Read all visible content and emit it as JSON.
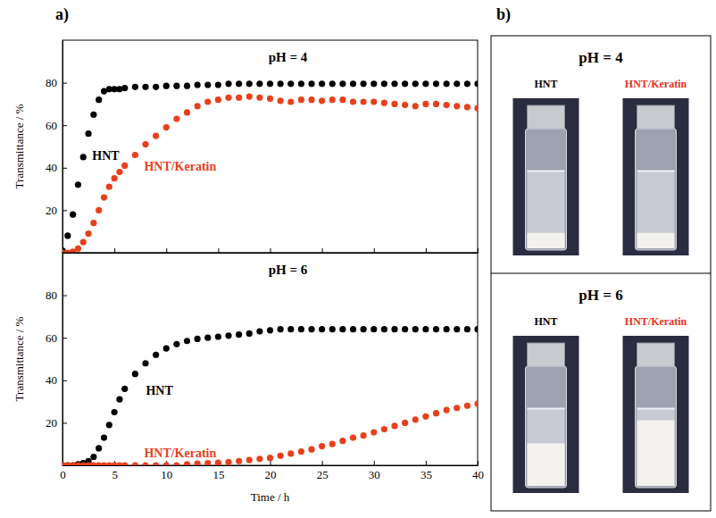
{
  "chart_data": [
    {
      "type": "scatter",
      "title": "pH = 4",
      "ylabel": "Transmittance / %",
      "x": [
        0,
        0.5,
        1,
        1.5,
        2,
        2.5,
        3,
        3.5,
        4,
        4.5,
        5,
        5.5,
        6,
        7,
        8,
        9,
        10,
        11,
        12,
        13,
        14,
        15,
        16,
        17,
        18,
        19,
        20,
        21,
        22,
        23,
        24,
        25,
        26,
        27,
        28,
        29,
        30,
        31,
        32,
        33,
        34,
        35,
        36,
        37,
        38,
        39,
        40
      ],
      "series": [
        {
          "name": "HNT",
          "color": "#000000",
          "marker": "circle",
          "values": [
            1,
            8,
            18,
            32,
            45,
            56,
            65,
            72,
            76,
            77,
            77,
            77,
            77.5,
            78,
            78,
            78,
            78.5,
            78.5,
            78.5,
            79,
            79,
            79,
            79.5,
            79.5,
            79.5,
            79.5,
            79.5,
            79.5,
            79.5,
            79.5,
            79.5,
            79.5,
            79.5,
            79.5,
            79.5,
            79.5,
            79.5,
            79.5,
            79.5,
            79.5,
            79.5,
            79.5,
            79.5,
            79.5,
            79.5,
            79.5,
            79.5
          ]
        },
        {
          "name": "HNT/Keratin",
          "color": "#e8401c",
          "marker": "circle",
          "values": [
            0,
            0,
            0.5,
            2,
            5,
            9,
            14,
            20,
            26,
            31,
            35,
            38,
            41,
            46,
            51,
            55,
            59,
            63,
            66,
            69,
            71,
            72,
            73,
            73,
            73.5,
            73,
            72.5,
            71.5,
            71,
            72,
            72,
            71.5,
            72,
            72,
            71,
            71,
            71,
            70.5,
            70,
            69.5,
            69,
            70,
            70,
            69.5,
            69,
            68.5,
            68
          ]
        }
      ],
      "xlim": [
        0,
        40
      ],
      "xticks": [
        0,
        5,
        10,
        15,
        20,
        25,
        30,
        35,
        40
      ],
      "ylim": [
        0,
        100
      ],
      "yticks": [
        20,
        40,
        60,
        80
      ],
      "grid": false,
      "tick_labels": "y"
    },
    {
      "type": "scatter",
      "title": "pH = 6",
      "xlabel": "Time / h",
      "ylabel": "Transmittance / %",
      "x": [
        0,
        0.5,
        1,
        1.5,
        2,
        2.5,
        3,
        3.5,
        4,
        4.5,
        5,
        5.5,
        6,
        7,
        8,
        9,
        10,
        11,
        12,
        13,
        14,
        15,
        16,
        17,
        18,
        19,
        20,
        21,
        22,
        23,
        24,
        25,
        26,
        27,
        28,
        29,
        30,
        31,
        32,
        33,
        34,
        35,
        36,
        37,
        38,
        39,
        40
      ],
      "series": [
        {
          "name": "HNT",
          "color": "#000000",
          "marker": "circle",
          "values": [
            0,
            0,
            0,
            0.5,
            1,
            2,
            4,
            8,
            13,
            19,
            25,
            31,
            36,
            43,
            48,
            52,
            55,
            57,
            58.5,
            59.5,
            60,
            60.5,
            61,
            61.5,
            62,
            63,
            63.5,
            64,
            64,
            64,
            64,
            64,
            64,
            64,
            64,
            64,
            64,
            64,
            64,
            64,
            64,
            64,
            64,
            64,
            64,
            64,
            64
          ]
        },
        {
          "name": "HNT/Keratin",
          "color": "#e8401c",
          "marker": "circle",
          "values": [
            0,
            0,
            0,
            0,
            0,
            0,
            0,
            0,
            0,
            0,
            0,
            0,
            0,
            0,
            0,
            0,
            0,
            0,
            0.5,
            0.8,
            1,
            1.2,
            1.5,
            2,
            2.5,
            3,
            3.5,
            4.5,
            5.5,
            6.5,
            7.5,
            9,
            10,
            11.5,
            13,
            14,
            15.5,
            17,
            18.5,
            20,
            21.5,
            23,
            24.5,
            26,
            27,
            28,
            29
          ]
        }
      ],
      "xlim": [
        0,
        40
      ],
      "xticks": [
        0,
        5,
        10,
        15,
        20,
        25,
        30,
        35,
        40
      ],
      "ylim": [
        0,
        100
      ],
      "yticks": [
        20,
        40,
        60,
        80
      ],
      "grid": false,
      "tick_labels": true
    }
  ],
  "panel_a": {
    "label": "a)"
  },
  "panel_b": {
    "label": "b)",
    "groups": [
      {
        "title": "pH = 4",
        "vials": [
          {
            "label": "HNT",
            "color": "#000000"
          },
          {
            "label": "HNT/Keratin",
            "color": "#e8321e"
          }
        ]
      },
      {
        "title": "pH = 6",
        "vials": [
          {
            "label": "HNT",
            "color": "#000000"
          },
          {
            "label": "HNT/Keratin",
            "color": "#e8321e"
          }
        ]
      }
    ]
  }
}
